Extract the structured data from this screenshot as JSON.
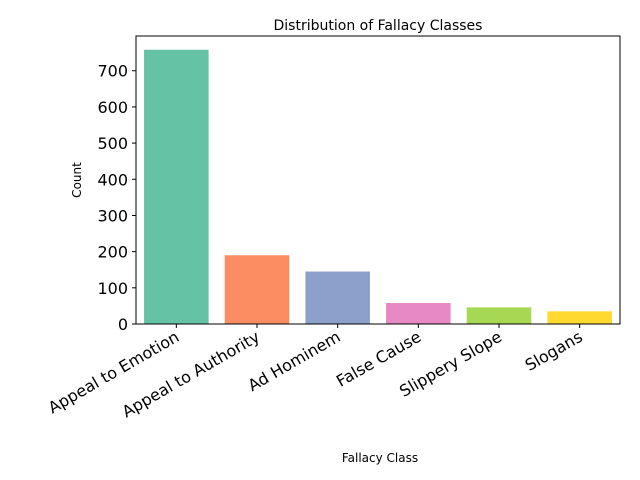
{
  "chart_data": {
    "type": "bar",
    "title": "Distribution of Fallacy Classes",
    "xlabel": "Fallacy Class",
    "ylabel": "Count",
    "categories": [
      "Appeal to Emotion",
      "Appeal to Authority",
      "Ad Hominem",
      "False Cause",
      "Slippery Slope",
      "Slogans"
    ],
    "values": [
      758,
      190,
      145,
      58,
      46,
      35
    ],
    "colors": [
      "#66c2a5",
      "#fc8d62",
      "#8da0cb",
      "#e78ac3",
      "#a6d854",
      "#ffd92f"
    ],
    "yticks": [
      0,
      100,
      200,
      300,
      400,
      500,
      600,
      700
    ],
    "ylim": [
      0,
      796
    ],
    "grid": false,
    "legend": "none"
  }
}
